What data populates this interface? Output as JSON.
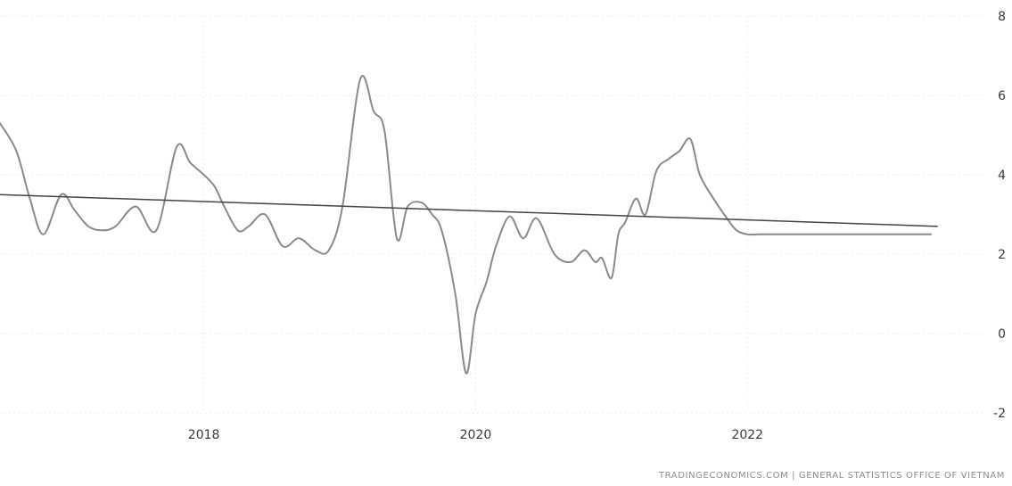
{
  "chart_data": {
    "type": "line",
    "title": "",
    "xlabel": "",
    "ylabel": "",
    "xlim": [
      2016.5,
      2023.75
    ],
    "ylim": [
      -2,
      8
    ],
    "x_ticks": [
      {
        "value": 2018,
        "label": "2018"
      },
      {
        "value": 2020,
        "label": "2020"
      },
      {
        "value": 2022,
        "label": "2022"
      }
    ],
    "y_ticks": [
      {
        "value": 8,
        "label": "8"
      },
      {
        "value": 6,
        "label": "6"
      },
      {
        "value": 4,
        "label": "4"
      },
      {
        "value": 2,
        "label": "2"
      },
      {
        "value": 0,
        "label": "0"
      },
      {
        "value": -2,
        "label": "-2"
      }
    ],
    "grid": true,
    "source": "TRADINGECONOMICS.COM | GENERAL STATISTICS OFFICE OF VIETNAM",
    "series": [
      {
        "color": "#8a8a8a",
        "x": [
          2016.5,
          2016.62,
          2016.72,
          2016.82,
          2016.95,
          2017.05,
          2017.15,
          2017.25,
          2017.35,
          2017.5,
          2017.65,
          2017.8,
          2017.9,
          2018.0,
          2018.08,
          2018.15,
          2018.25,
          2018.33,
          2018.45,
          2018.58,
          2018.7,
          2018.82,
          2018.92,
          2019.02,
          2019.15,
          2019.25,
          2019.33,
          2019.42,
          2019.5,
          2019.6,
          2019.68,
          2019.75,
          2019.85,
          2019.93,
          2020.0,
          2020.08,
          2020.15,
          2020.25,
          2020.35,
          2020.45,
          2020.58,
          2020.7,
          2020.8,
          2020.88,
          2020.93,
          2021.0,
          2021.05,
          2021.1,
          2021.18,
          2021.25,
          2021.33,
          2021.42,
          2021.5,
          2021.58,
          2021.65,
          2021.75,
          2021.85,
          2021.92,
          2022.0,
          2022.08,
          2022.17,
          2022.25,
          2022.33,
          2022.42,
          2022.5,
          2022.6,
          2022.67,
          2022.75,
          2022.83,
          2022.92,
          2023.0,
          2023.08,
          2023.17,
          2023.25,
          2023.35
        ],
        "y": [
          5.3,
          4.6,
          3.4,
          2.5,
          3.5,
          3.1,
          2.7,
          2.6,
          2.7,
          3.2,
          2.6,
          4.7,
          4.3,
          4.0,
          3.7,
          3.2,
          2.6,
          2.7,
          3.0,
          2.2,
          2.4,
          2.1,
          2.1,
          3.2,
          6.4,
          5.6,
          5.1,
          2.4,
          3.2,
          3.3,
          3.0,
          2.6,
          1.0,
          -1.0,
          0.5,
          1.3,
          2.2,
          2.95,
          2.4,
          2.9,
          2.0,
          1.8,
          2.1,
          1.8,
          1.9,
          1.4,
          2.5,
          2.8,
          3.4,
          3.0,
          4.1,
          4.4,
          4.6,
          4.9,
          4.0,
          3.4,
          2.9,
          2.6,
          2.5,
          2.5,
          2.5,
          2.5,
          2.5,
          2.5,
          2.5,
          2.5,
          2.5,
          2.5,
          2.5,
          2.5,
          2.5,
          2.5,
          2.5,
          2.5,
          2.5
        ]
      }
    ],
    "trendline": {
      "color": "#444444",
      "x": [
        2016.5,
        2023.4
      ],
      "y": [
        3.5,
        2.7
      ]
    }
  }
}
